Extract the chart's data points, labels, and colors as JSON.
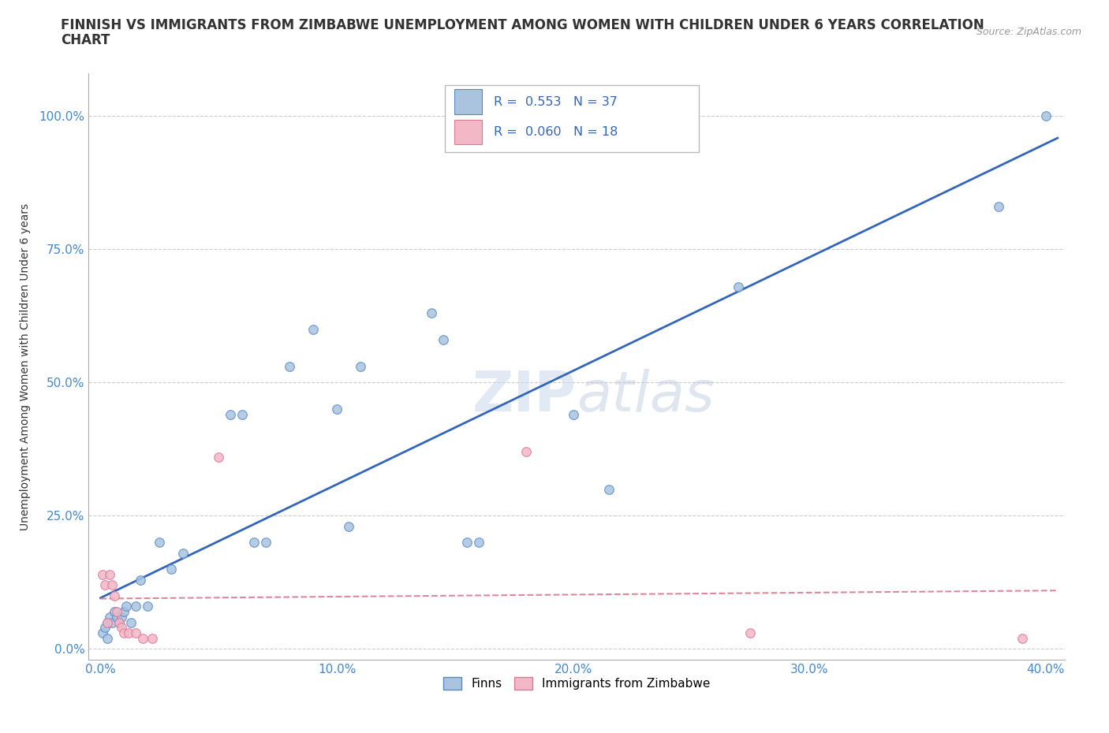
{
  "title_line1": "FINNISH VS IMMIGRANTS FROM ZIMBABWE UNEMPLOYMENT AMONG WOMEN WITH CHILDREN UNDER 6 YEARS CORRELATION",
  "title_line2": "CHART",
  "source": "Source: ZipAtlas.com",
  "ylabel": "Unemployment Among Women with Children Under 6 years",
  "xlabel_ticks": [
    "0.0%",
    "10.0%",
    "20.0%",
    "30.0%",
    "40.0%"
  ],
  "xlabel_vals": [
    0.0,
    0.1,
    0.2,
    0.3,
    0.4
  ],
  "ylabel_ticks": [
    "0.0%",
    "25.0%",
    "50.0%",
    "75.0%",
    "100.0%"
  ],
  "ylabel_vals": [
    0.0,
    0.25,
    0.5,
    0.75,
    1.0
  ],
  "xlim": [
    -0.005,
    0.408
  ],
  "ylim": [
    -0.02,
    1.08
  ],
  "finns_color": "#aac4df",
  "zimbabwe_color": "#f2b8c6",
  "finns_edge": "#5588cc",
  "zimbabwe_edge": "#dd7799",
  "regression_finns_color": "#3366bb",
  "regression_zimbabwe_color": "#dd8899",
  "R_finns": 0.553,
  "N_finns": 37,
  "R_zimbabwe": 0.06,
  "N_zimbabwe": 18,
  "finns_x": [
    0.001,
    0.002,
    0.003,
    0.003,
    0.004,
    0.005,
    0.006,
    0.007,
    0.008,
    0.009,
    0.01,
    0.011,
    0.013,
    0.015,
    0.017,
    0.02,
    0.025,
    0.03,
    0.035,
    0.055,
    0.06,
    0.065,
    0.07,
    0.08,
    0.09,
    0.1,
    0.105,
    0.11,
    0.14,
    0.145,
    0.155,
    0.16,
    0.2,
    0.215,
    0.27,
    0.38,
    0.4
  ],
  "finns_y": [
    0.03,
    0.04,
    0.02,
    0.05,
    0.06,
    0.05,
    0.07,
    0.06,
    0.05,
    0.06,
    0.07,
    0.08,
    0.05,
    0.08,
    0.13,
    0.08,
    0.2,
    0.15,
    0.18,
    0.44,
    0.44,
    0.2,
    0.2,
    0.53,
    0.6,
    0.45,
    0.23,
    0.53,
    0.63,
    0.58,
    0.2,
    0.2,
    0.44,
    0.3,
    0.68,
    0.83,
    1.0
  ],
  "zimbabwe_x": [
    0.001,
    0.002,
    0.003,
    0.004,
    0.005,
    0.006,
    0.007,
    0.008,
    0.009,
    0.01,
    0.012,
    0.015,
    0.018,
    0.022,
    0.05,
    0.18,
    0.275,
    0.39
  ],
  "zimbabwe_y": [
    0.14,
    0.12,
    0.05,
    0.14,
    0.12,
    0.1,
    0.07,
    0.05,
    0.04,
    0.03,
    0.03,
    0.03,
    0.02,
    0.02,
    0.36,
    0.37,
    0.03,
    0.02
  ]
}
